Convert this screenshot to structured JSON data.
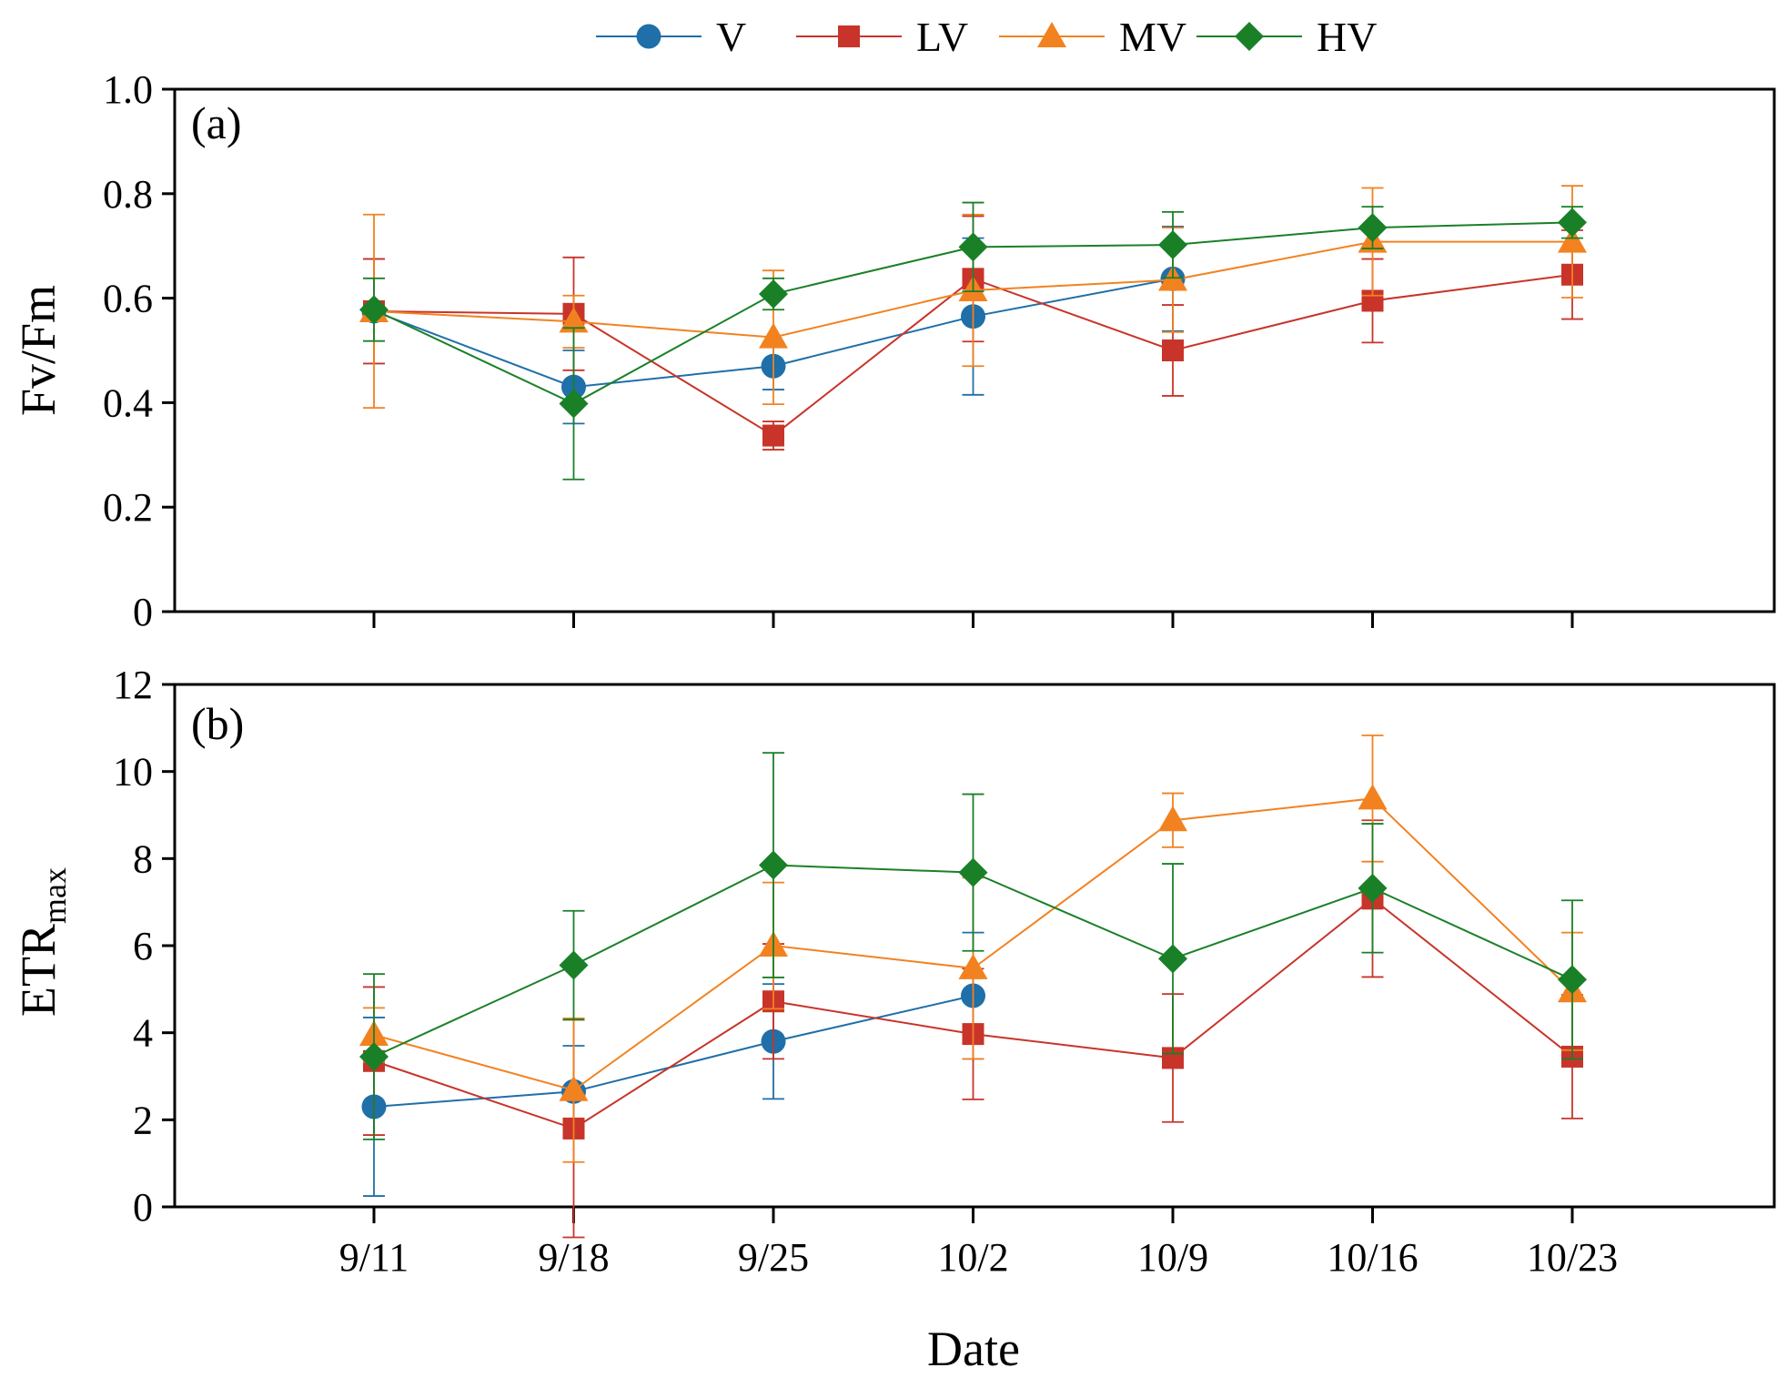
{
  "chart_data": [
    {
      "type": "line",
      "panel_label": "(a)",
      "ylabel": "Fv/Fm",
      "xlabel": "",
      "categories": [
        "9/11",
        "9/18",
        "9/25",
        "10/2",
        "10/9",
        "10/16",
        "10/23"
      ],
      "ylim": [
        0,
        1.0
      ],
      "yticks": [
        0,
        0.2,
        0.4,
        0.6,
        0.8,
        1.0
      ],
      "ytick_labels": [
        "0",
        "0.2",
        "0.4",
        "0.6",
        "0.8",
        "1.0"
      ],
      "series": [
        {
          "name": "V",
          "values": [
            0.575,
            0.43,
            0.47,
            0.565,
            0.637,
            null,
            null
          ],
          "errors": [
            0.1,
            0.07,
            0.045,
            0.15,
            0.1,
            null,
            null
          ]
        },
        {
          "name": "LV",
          "values": [
            0.575,
            0.57,
            0.337,
            0.637,
            0.5,
            0.595,
            0.645
          ],
          "errors": [
            0.1,
            0.108,
            0.027,
            0.12,
            0.087,
            0.08,
            0.085
          ]
        },
        {
          "name": "MV",
          "values": [
            0.575,
            0.555,
            0.525,
            0.615,
            0.635,
            0.708,
            0.708
          ],
          "errors": [
            0.185,
            0.05,
            0.128,
            0.145,
            0.1,
            0.103,
            0.107
          ]
        },
        {
          "name": "HV",
          "values": [
            0.578,
            0.398,
            0.608,
            0.698,
            0.702,
            0.735,
            0.745
          ],
          "errors": [
            0.06,
            0.145,
            0.03,
            0.085,
            0.063,
            0.04,
            0.03
          ]
        }
      ]
    },
    {
      "type": "line",
      "panel_label": "(b)",
      "ylabel": "ETR",
      "ylabel_subscript": "max",
      "xlabel": "Date",
      "categories": [
        "9/11",
        "9/18",
        "9/25",
        "10/2",
        "10/9",
        "10/16",
        "10/23"
      ],
      "ylim": [
        0,
        12
      ],
      "yticks": [
        0,
        2,
        4,
        6,
        8,
        10,
        12
      ],
      "ytick_labels": [
        "0",
        "2",
        "4",
        "6",
        "8",
        "10",
        "12"
      ],
      "series": [
        {
          "name": "V",
          "values": [
            2.3,
            2.65,
            3.8,
            4.85,
            null,
            null,
            null
          ],
          "errors": [
            2.05,
            1.05,
            1.32,
            1.45,
            null,
            null,
            null
          ]
        },
        {
          "name": "LV",
          "values": [
            3.35,
            1.8,
            4.72,
            3.97,
            3.42,
            7.08,
            3.45
          ],
          "errors": [
            1.7,
            2.5,
            1.32,
            1.5,
            1.47,
            1.8,
            1.42
          ]
        },
        {
          "name": "MV",
          "values": [
            3.95,
            2.68,
            6.0,
            5.48,
            8.88,
            9.38,
            4.95
          ],
          "errors": [
            0.62,
            1.65,
            1.45,
            2.08,
            0.62,
            1.45,
            1.35
          ]
        },
        {
          "name": "HV",
          "values": [
            3.45,
            5.55,
            7.85,
            7.68,
            5.7,
            7.32,
            5.22
          ],
          "errors": [
            1.9,
            1.25,
            2.58,
            1.8,
            2.18,
            1.48,
            1.82
          ]
        }
      ]
    }
  ],
  "legend": {
    "entries": [
      {
        "name": "V",
        "color": "#1f6fa8",
        "marker": "circle"
      },
      {
        "name": "LV",
        "color": "#c8342a",
        "marker": "square"
      },
      {
        "name": "MV",
        "color": "#f28220",
        "marker": "triangle"
      },
      {
        "name": "HV",
        "color": "#1a8027",
        "marker": "diamond"
      }
    ]
  },
  "colors": {
    "V": "#1f6fa8",
    "LV": "#c8342a",
    "MV": "#f28220",
    "HV": "#1a8027"
  }
}
